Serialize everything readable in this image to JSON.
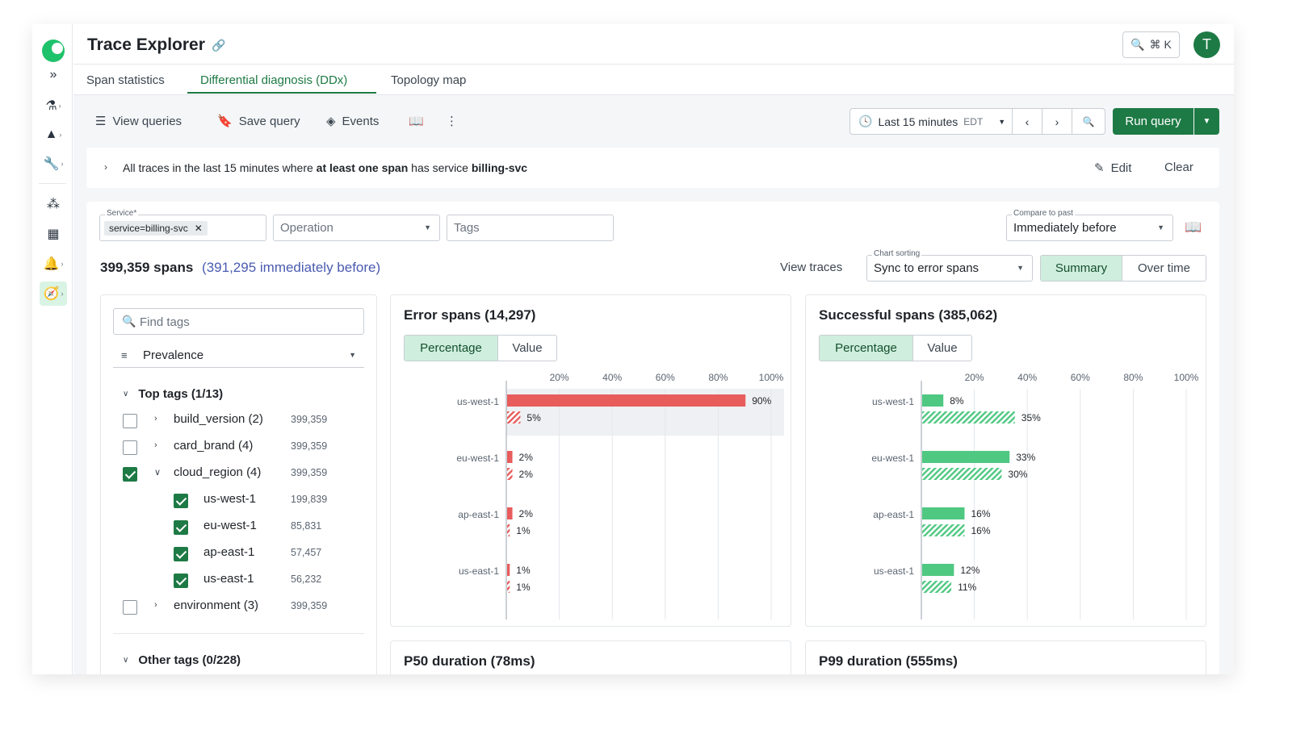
{
  "header": {
    "title": "Trace Explorer",
    "search_shortcut": "⌘ K",
    "avatar_letter": "T"
  },
  "tabs": [
    {
      "label": "Span statistics",
      "active": false
    },
    {
      "label": "Differential diagnosis (DDx)",
      "active": true
    },
    {
      "label": "Topology map",
      "active": false
    }
  ],
  "toolbar": {
    "view_queries": "View queries",
    "save_query": "Save query",
    "events": "Events",
    "time_range": "Last 15 minutes",
    "timezone": "EDT",
    "run_query": "Run query"
  },
  "summary": {
    "prefix": "All traces in the last 15 minutes where ",
    "bold1": "at least one span",
    "middle": " has service ",
    "bold2": "billing-svc",
    "edit": "Edit",
    "clear": "Clear"
  },
  "filters": {
    "service_label": "Service*",
    "service_chip": "service=billing-svc",
    "operation_placeholder": "Operation",
    "tags_placeholder": "Tags",
    "compare_label": "Compare to past",
    "compare_value": "Immediately before",
    "sorting_label": "Chart sorting",
    "sorting_value": "Sync to error spans"
  },
  "counts": {
    "spans": "399,359 spans",
    "before": "(391,295 immediately before)",
    "view_traces": "View traces",
    "view_summary": "Summary",
    "view_over_time": "Over time"
  },
  "tags_panel": {
    "find_placeholder": "Find tags",
    "sort_by": "Prevalence",
    "top_tags": "Top tags (1/13)",
    "other_tags": "Other tags (0/228)",
    "rows": [
      {
        "name": "build_version (2)",
        "count": "399,359",
        "checked": false,
        "level": 0,
        "expanded": false
      },
      {
        "name": "card_brand (4)",
        "count": "399,359",
        "checked": false,
        "level": 0,
        "expanded": false
      },
      {
        "name": "cloud_region (4)",
        "count": "399,359",
        "checked": true,
        "level": 0,
        "expanded": true
      },
      {
        "name": "us-west-1",
        "count": "199,839",
        "checked": true,
        "level": 1
      },
      {
        "name": "eu-west-1",
        "count": "85,831",
        "checked": true,
        "level": 1
      },
      {
        "name": "ap-east-1",
        "count": "57,457",
        "checked": true,
        "level": 1
      },
      {
        "name": "us-east-1",
        "count": "56,232",
        "checked": true,
        "level": 1
      },
      {
        "name": "environment (3)",
        "count": "399,359",
        "checked": false,
        "level": 0,
        "expanded": false
      }
    ]
  },
  "error_chart": {
    "title": "Error spans (14,297)",
    "toggle_pct": "Percentage",
    "toggle_val": "Value"
  },
  "success_chart": {
    "title": "Successful spans (385,062)",
    "toggle_pct": "Percentage",
    "toggle_val": "Value"
  },
  "bottom": {
    "p50": "P50 duration (78ms)",
    "p99": "P99 duration (555ms)"
  },
  "colors": {
    "accent": "#1e7a45",
    "error": "#e85c5c",
    "success": "#4fc882"
  },
  "chart_data": [
    {
      "type": "bar",
      "title": "Error spans (14,297)",
      "categories": [
        "us-west-1",
        "eu-west-1",
        "ap-east-1",
        "us-east-1"
      ],
      "ticks": [
        "20%",
        "40%",
        "60%",
        "80%",
        "100%"
      ],
      "xlim": [
        0,
        100
      ],
      "series": [
        {
          "values": [
            90,
            2,
            2,
            1
          ],
          "labels": [
            "90%",
            "2%",
            "2%",
            "1%"
          ]
        },
        {
          "values": [
            5,
            2,
            1,
            1
          ],
          "labels": [
            "5%",
            "2%",
            "1%",
            "1%"
          ]
        }
      ]
    },
    {
      "type": "bar",
      "title": "Successful spans (385,062)",
      "categories": [
        "us-west-1",
        "eu-west-1",
        "ap-east-1",
        "us-east-1"
      ],
      "ticks": [
        "20%",
        "40%",
        "60%",
        "80%",
        "100%"
      ],
      "xlim": [
        0,
        100
      ],
      "series": [
        {
          "values": [
            8,
            33,
            16,
            12
          ],
          "labels": [
            "8%",
            "33%",
            "16%",
            "12%"
          ]
        },
        {
          "values": [
            35,
            30,
            16,
            11
          ],
          "labels": [
            "35%",
            "30%",
            "16%",
            "11%"
          ]
        }
      ]
    }
  ]
}
